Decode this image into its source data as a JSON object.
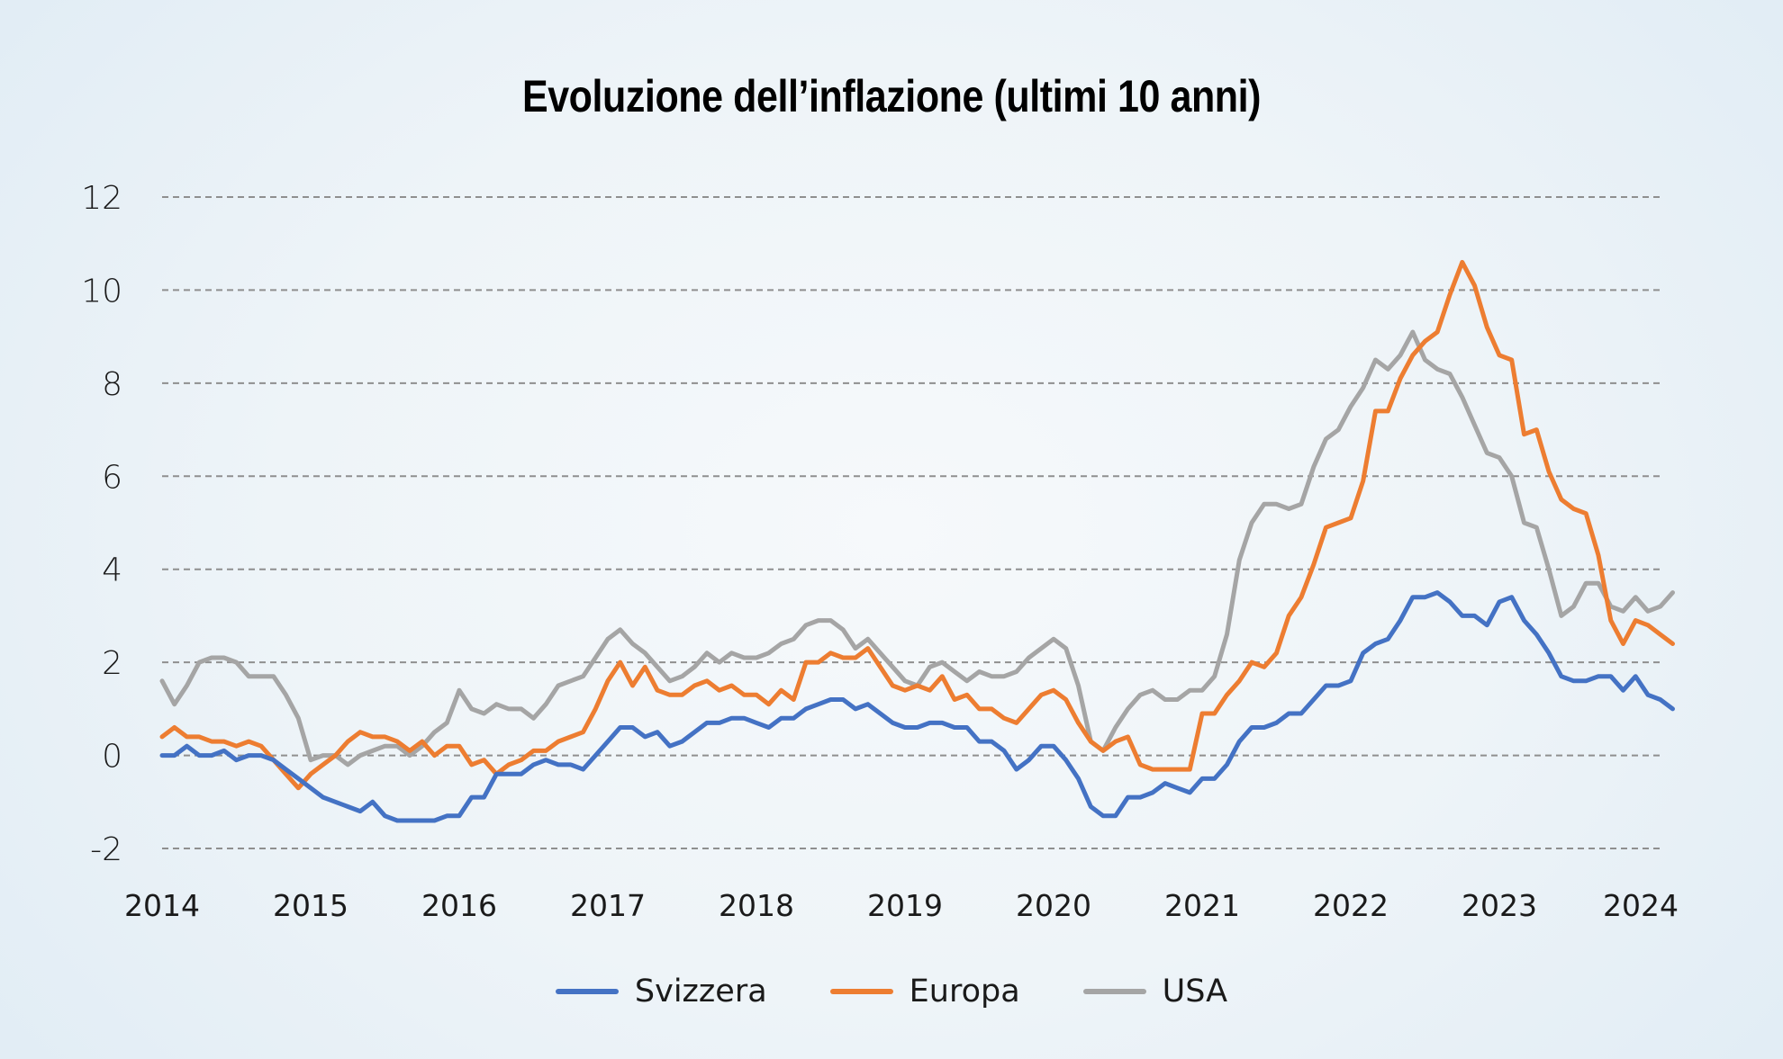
{
  "chart_data": {
    "type": "line",
    "title": "Evoluzione dell’inflazione (ultimi 10 anni)",
    "xlabel": "",
    "ylabel": "",
    "ylim": [
      -2,
      12
    ],
    "yticks": [
      -2,
      0,
      2,
      4,
      6,
      8,
      10,
      12
    ],
    "ytick_labels": [
      "-2",
      "0",
      "2",
      "4",
      "6",
      "8",
      "10",
      "12"
    ],
    "xlim": [
      2014,
      2024.17
    ],
    "xticks": [
      2014,
      2015,
      2016,
      2017,
      2018,
      2019,
      2020,
      2021,
      2022,
      2023,
      2024
    ],
    "xtick_labels": [
      "2014",
      "2015",
      "2016",
      "2017",
      "2018",
      "2019",
      "2020",
      "2021",
      "2022",
      "2023",
      "2024"
    ],
    "grid": true,
    "legend_position": "bottom-center",
    "x_start": 2014,
    "x_step_months": 1,
    "series": [
      {
        "name": "Svizzera",
        "color": "#4472c4",
        "values": [
          0,
          0,
          0.2,
          0,
          0,
          0.1,
          -0.1,
          0,
          0,
          -0.1,
          -0.3,
          -0.5,
          -0.7,
          -0.9,
          -1.0,
          -1.1,
          -1.2,
          -1.0,
          -1.3,
          -1.4,
          -1.4,
          -1.4,
          -1.4,
          -1.3,
          -1.3,
          -0.9,
          -0.9,
          -0.4,
          -0.4,
          -0.4,
          -0.2,
          -0.1,
          -0.2,
          -0.2,
          -0.3,
          0,
          0.3,
          0.6,
          0.6,
          0.4,
          0.5,
          0.2,
          0.3,
          0.5,
          0.7,
          0.7,
          0.8,
          0.8,
          0.7,
          0.6,
          0.8,
          0.8,
          1.0,
          1.1,
          1.2,
          1.2,
          1.0,
          1.1,
          0.9,
          0.7,
          0.6,
          0.6,
          0.7,
          0.7,
          0.6,
          0.6,
          0.3,
          0.3,
          0.1,
          -0.3,
          -0.1,
          0.2,
          0.2,
          -0.1,
          -0.5,
          -1.1,
          -1.3,
          -1.3,
          -0.9,
          -0.9,
          -0.8,
          -0.6,
          -0.7,
          -0.8,
          -0.5,
          -0.5,
          -0.2,
          0.3,
          0.6,
          0.6,
          0.7,
          0.9,
          0.9,
          1.2,
          1.5,
          1.5,
          1.6,
          2.2,
          2.4,
          2.5,
          2.9,
          3.4,
          3.4,
          3.5,
          3.3,
          3.0,
          3.0,
          2.8,
          3.3,
          3.4,
          2.9,
          2.6,
          2.2,
          1.7,
          1.6,
          1.6,
          1.7,
          1.7,
          1.4,
          1.7,
          1.3,
          1.2,
          1.0
        ]
      },
      {
        "name": "Europa",
        "color": "#ed7d31",
        "values": [
          0.4,
          0.6,
          0.4,
          0.4,
          0.3,
          0.3,
          0.2,
          0.3,
          0.2,
          -0.1,
          -0.4,
          -0.7,
          -0.4,
          -0.2,
          0,
          0.3,
          0.5,
          0.4,
          0.4,
          0.3,
          0.1,
          0.3,
          0,
          0.2,
          0.2,
          -0.2,
          -0.1,
          -0.4,
          -0.2,
          -0.1,
          0.1,
          0.1,
          0.3,
          0.4,
          0.5,
          1.0,
          1.6,
          2.0,
          1.5,
          1.9,
          1.4,
          1.3,
          1.3,
          1.5,
          1.6,
          1.4,
          1.5,
          1.3,
          1.3,
          1.1,
          1.4,
          1.2,
          2.0,
          2.0,
          2.2,
          2.1,
          2.1,
          2.3,
          1.9,
          1.5,
          1.4,
          1.5,
          1.4,
          1.7,
          1.2,
          1.3,
          1.0,
          1.0,
          0.8,
          0.7,
          1.0,
          1.3,
          1.4,
          1.2,
          0.7,
          0.3,
          0.1,
          0.3,
          0.4,
          -0.2,
          -0.3,
          -0.3,
          -0.3,
          -0.3,
          0.9,
          0.9,
          1.3,
          1.6,
          2.0,
          1.9,
          2.2,
          3.0,
          3.4,
          4.1,
          4.9,
          5.0,
          5.1,
          5.9,
          7.4,
          7.4,
          8.1,
          8.6,
          8.9,
          9.1,
          9.9,
          10.6,
          10.1,
          9.2,
          8.6,
          8.5,
          6.9,
          7.0,
          6.1,
          5.5,
          5.3,
          5.2,
          4.3,
          2.9,
          2.4,
          2.9,
          2.8,
          2.6,
          2.4
        ]
      },
      {
        "name": "USA",
        "color": "#a5a5a5",
        "values": [
          1.6,
          1.1,
          1.5,
          2.0,
          2.1,
          2.1,
          2.0,
          1.7,
          1.7,
          1.7,
          1.3,
          0.8,
          -0.1,
          0,
          0,
          -0.2,
          0,
          0.1,
          0.2,
          0.2,
          0,
          0.2,
          0.5,
          0.7,
          1.4,
          1.0,
          0.9,
          1.1,
          1.0,
          1.0,
          0.8,
          1.1,
          1.5,
          1.6,
          1.7,
          2.1,
          2.5,
          2.7,
          2.4,
          2.2,
          1.9,
          1.6,
          1.7,
          1.9,
          2.2,
          2.0,
          2.2,
          2.1,
          2.1,
          2.2,
          2.4,
          2.5,
          2.8,
          2.9,
          2.9,
          2.7,
          2.3,
          2.5,
          2.2,
          1.9,
          1.6,
          1.5,
          1.9,
          2.0,
          1.8,
          1.6,
          1.8,
          1.7,
          1.7,
          1.8,
          2.1,
          2.3,
          2.5,
          2.3,
          1.5,
          0.3,
          0.1,
          0.6,
          1.0,
          1.3,
          1.4,
          1.2,
          1.2,
          1.4,
          1.4,
          1.7,
          2.6,
          4.2,
          5.0,
          5.4,
          5.4,
          5.3,
          5.4,
          6.2,
          6.8,
          7.0,
          7.5,
          7.9,
          8.5,
          8.3,
          8.6,
          9.1,
          8.5,
          8.3,
          8.2,
          7.7,
          7.1,
          6.5,
          6.4,
          6.0,
          5.0,
          4.9,
          4.0,
          3.0,
          3.2,
          3.7,
          3.7,
          3.2,
          3.1,
          3.4,
          3.1,
          3.2,
          3.5
        ]
      }
    ]
  },
  "legend": {
    "items": [
      {
        "label": "Svizzera",
        "color": "#4472c4"
      },
      {
        "label": "Europa",
        "color": "#ed7d31"
      },
      {
        "label": "USA",
        "color": "#a5a5a5"
      }
    ]
  }
}
